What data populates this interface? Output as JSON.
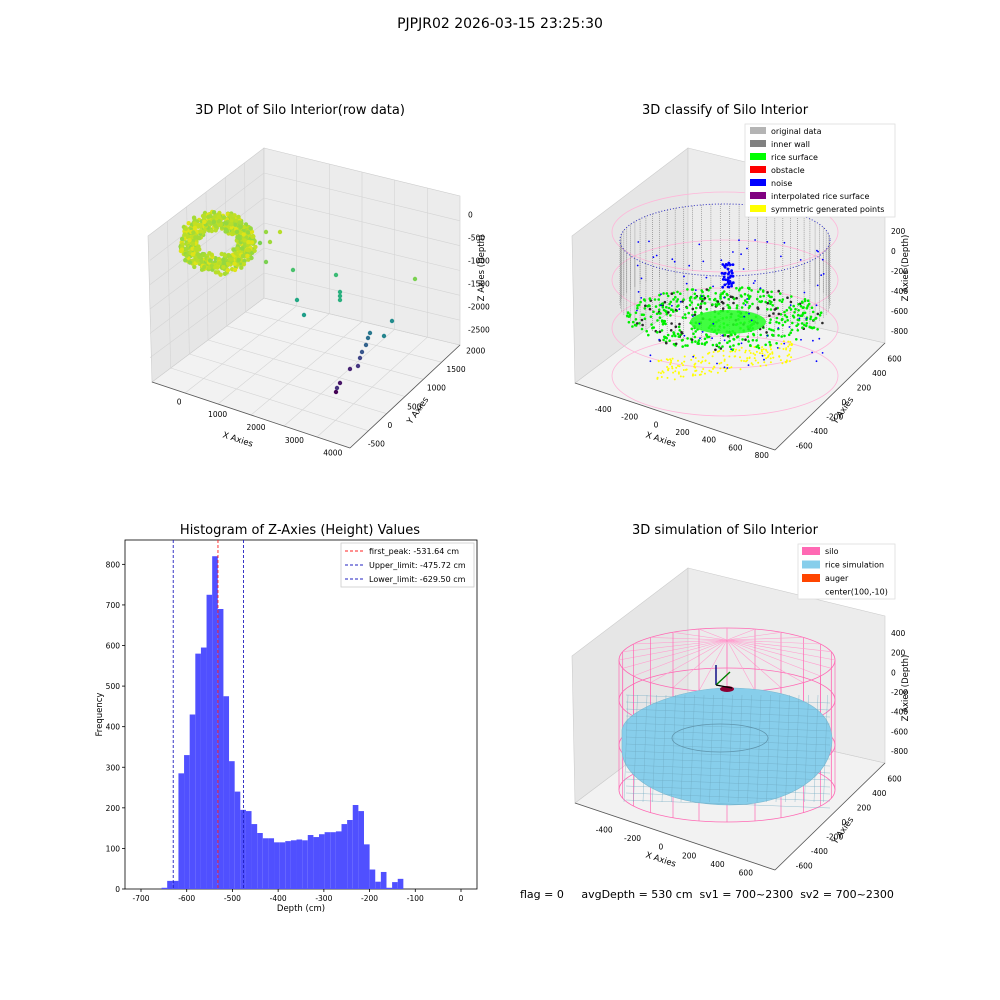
{
  "suptitle": "PJPJR02 2026-03-15 23:25:30",
  "status_text": "flag = 0     avgDepth = 530 cm  sv1 = 700~2300  sv2 = 700~2300",
  "colors": {
    "histogram_bar": "#5050ff",
    "peak_line": "#ff2020",
    "limit_line": "#2020c0",
    "rice_simulation": "#87ceeb",
    "silo": "#ff69b4",
    "auger": "#ff4500"
  },
  "chart_data": [
    {
      "type": "scatter",
      "subtype": "3d",
      "title": "3D Plot of Silo Interior(row data)",
      "xlabel": "X Axies",
      "ylabel": "Y Axies",
      "zlabel": "Z Axies (Depth)",
      "x_ticks": [
        "0",
        "1000",
        "2000",
        "3000",
        "4000"
      ],
      "y_ticks": [
        "-500",
        "0",
        "500",
        "1000",
        "1500",
        "2000"
      ],
      "z_ticks": [
        "0",
        "-500",
        "-1000",
        "-1500",
        "-2000",
        "-2500"
      ],
      "colormap": "viridis"
    },
    {
      "type": "scatter",
      "subtype": "3d",
      "title": "3D classify of Silo Interior",
      "xlabel": "X Axies",
      "ylabel": "Y Axies",
      "zlabel": "Z Axies (Depth)",
      "x_ticks": [
        "-400",
        "-200",
        "0",
        "200",
        "400",
        "600",
        "800"
      ],
      "y_ticks": [
        "-600",
        "-400",
        "-200",
        "0",
        "200",
        "400",
        "600"
      ],
      "z_ticks": [
        "200",
        "0",
        "-200",
        "-400",
        "-600",
        "-800"
      ],
      "legend": [
        {
          "label": "original data",
          "color": "#b4b4b4"
        },
        {
          "label": "inner wall",
          "color": "#808080"
        },
        {
          "label": "rice surface",
          "color": "#00ff00"
        },
        {
          "label": "obstacle",
          "color": "#ff0000"
        },
        {
          "label": "noise",
          "color": "#0000ff"
        },
        {
          "label": "interpolated rice surface",
          "color": "#800080"
        },
        {
          "label": "symmetric generated points",
          "color": "#ffff00"
        }
      ],
      "legend_position": "top-right"
    },
    {
      "type": "bar",
      "subtype": "histogram",
      "title": "Histogram of Z-Axies (Height) Values",
      "xlabel": "Depth (cm)",
      "ylabel": "Frequency",
      "xlim": [
        -735,
        35
      ],
      "ylim": [
        0,
        860
      ],
      "x_ticks": [
        -700,
        -600,
        -500,
        -400,
        -300,
        -200,
        -100,
        0
      ],
      "y_ticks": [
        0,
        100,
        200,
        300,
        400,
        500,
        600,
        700,
        800
      ],
      "bin_width": 12.3,
      "bin_start": -655,
      "values": [
        3,
        20,
        20,
        285,
        330,
        430,
        580,
        595,
        725,
        820,
        690,
        475,
        315,
        240,
        195,
        192,
        160,
        138,
        125,
        125,
        115,
        115,
        118,
        120,
        122,
        120,
        133,
        128,
        135,
        140,
        140,
        142,
        160,
        170,
        207,
        192,
        110,
        48,
        18,
        42,
        3,
        17,
        25
      ],
      "vlines": [
        {
          "label": "first_peak: -531.64 cm",
          "x": -531.64,
          "color": "#ff2020"
        },
        {
          "label": "Upper_limit: -475.72 cm",
          "x": -475.72,
          "color": "#2020c0"
        },
        {
          "label": "Lower_limit: -629.50 cm",
          "x": -629.5,
          "color": "#2020c0"
        }
      ],
      "legend_position": "top-right",
      "grid": false
    },
    {
      "type": "scatter",
      "subtype": "3d-surface",
      "title": "3D simulation of Silo Interior",
      "xlabel": "X Axies",
      "ylabel": "Y Axies",
      "zlabel": "Z Axies (Depth)",
      "x_ticks": [
        "-400",
        "-200",
        "0",
        "200",
        "400",
        "600"
      ],
      "y_ticks": [
        "-600",
        "-400",
        "-200",
        "0",
        "200",
        "400",
        "600"
      ],
      "z_ticks": [
        "400",
        "200",
        "0",
        "-200",
        "-400",
        "-600",
        "-800"
      ],
      "legend": [
        {
          "label": "silo",
          "color": "#ff69b4"
        },
        {
          "label": "rice simulation",
          "color": "#87ceeb"
        },
        {
          "label": "auger",
          "color": "#ff4500"
        },
        {
          "label": "center(100,-10)",
          "color": "none"
        }
      ],
      "legend_position": "top-right"
    }
  ]
}
